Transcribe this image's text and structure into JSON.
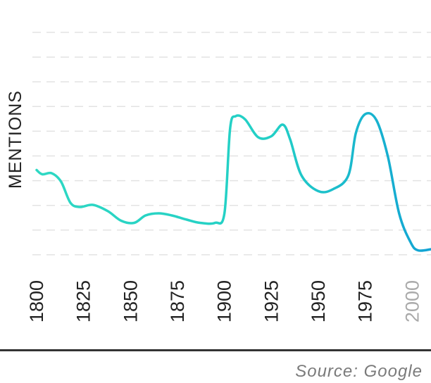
{
  "chart_data": {
    "type": "line",
    "title": "",
    "xlabel": "",
    "ylabel": "MENTIONS",
    "xlim": [
      1800,
      2010
    ],
    "ylim": [
      0,
      100
    ],
    "grid": true,
    "gridlines": 10,
    "x_ticks": [
      1800,
      1825,
      1850,
      1875,
      1900,
      1925,
      1950,
      1975,
      2000
    ],
    "x_ticks_muted": [
      2000
    ],
    "source": "Source: Google",
    "colors": {
      "line_start": "#2ed8c3",
      "line_end": "#12a3d4",
      "grid": "#e3e3e3",
      "tick": "#222222",
      "tick_muted": "#aaaaaa",
      "source": "#7a7a7a"
    },
    "series": [
      {
        "values": [
          {
            "x": 1800,
            "y": 40.5
          },
          {
            "x": 1803,
            "y": 38.5
          },
          {
            "x": 1808,
            "y": 39.0
          },
          {
            "x": 1813,
            "y": 35.0
          },
          {
            "x": 1818,
            "y": 25.0
          },
          {
            "x": 1823,
            "y": 23.0
          },
          {
            "x": 1830,
            "y": 24.0
          },
          {
            "x": 1838,
            "y": 21.0
          },
          {
            "x": 1845,
            "y": 16.5
          },
          {
            "x": 1852,
            "y": 15.5
          },
          {
            "x": 1858,
            "y": 19.0
          },
          {
            "x": 1865,
            "y": 20.0
          },
          {
            "x": 1872,
            "y": 19.0
          },
          {
            "x": 1880,
            "y": 17.0
          },
          {
            "x": 1887,
            "y": 15.5
          },
          {
            "x": 1895,
            "y": 15.5
          },
          {
            "x": 1900,
            "y": 20.0
          },
          {
            "x": 1903,
            "y": 60.0
          },
          {
            "x": 1906,
            "y": 66.0
          },
          {
            "x": 1911,
            "y": 64.5
          },
          {
            "x": 1918,
            "y": 56.0
          },
          {
            "x": 1925,
            "y": 56.5
          },
          {
            "x": 1931,
            "y": 62.0
          },
          {
            "x": 1935,
            "y": 55.0
          },
          {
            "x": 1941,
            "y": 38.0
          },
          {
            "x": 1950,
            "y": 30.5
          },
          {
            "x": 1958,
            "y": 31.5
          },
          {
            "x": 1966,
            "y": 38.0
          },
          {
            "x": 1970,
            "y": 58.0
          },
          {
            "x": 1975,
            "y": 67.0
          },
          {
            "x": 1981,
            "y": 64.0
          },
          {
            "x": 1987,
            "y": 47.0
          },
          {
            "x": 1993,
            "y": 20.0
          },
          {
            "x": 1999,
            "y": 6.5
          },
          {
            "x": 2003,
            "y": 2.5
          },
          {
            "x": 2010,
            "y": 3.0
          }
        ]
      }
    ]
  }
}
